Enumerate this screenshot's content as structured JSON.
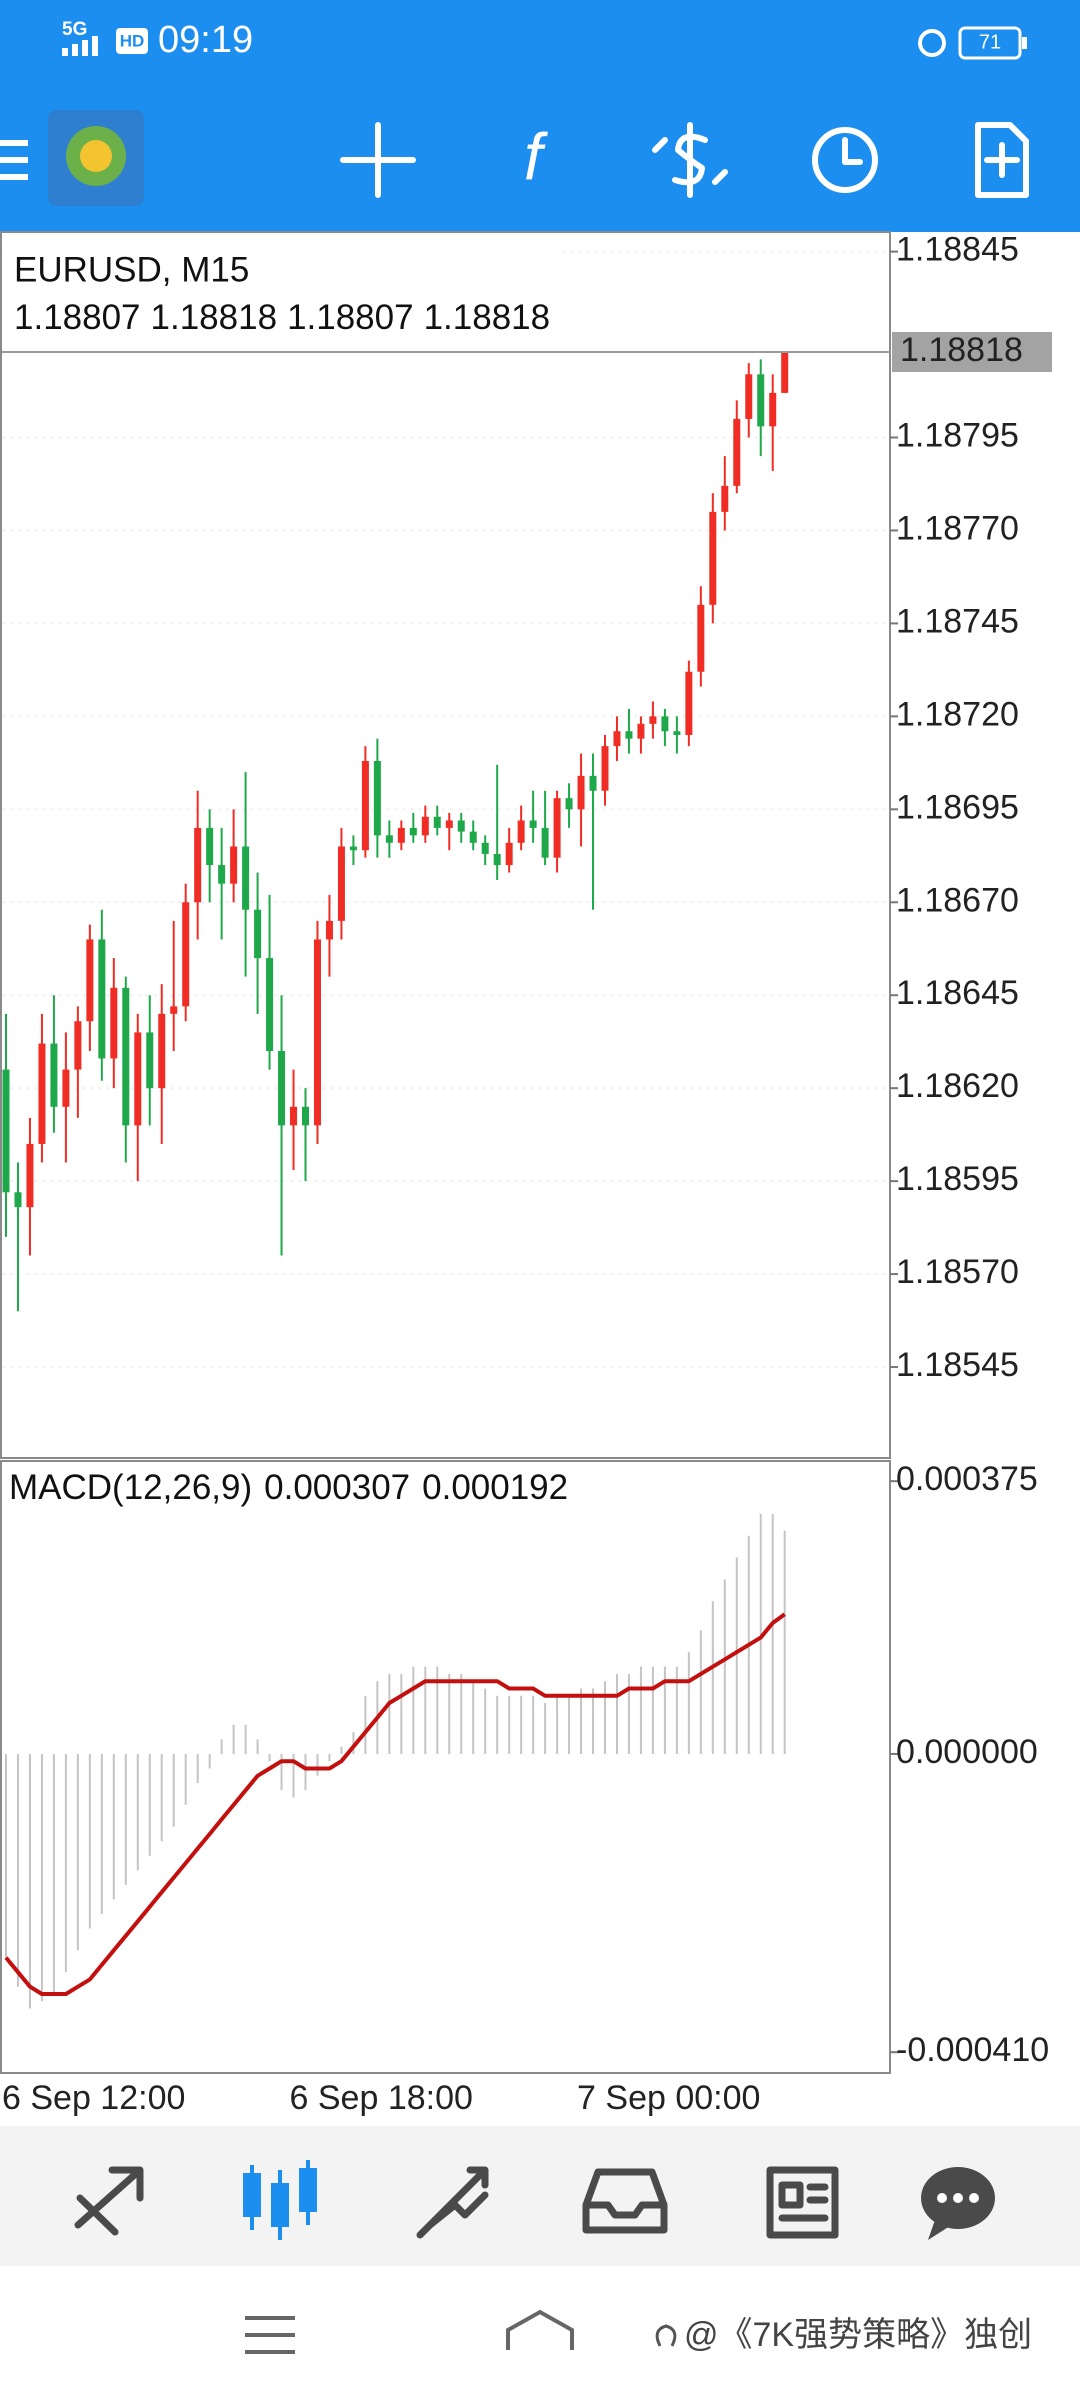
{
  "status_bar": {
    "network": "5G",
    "hd": "HD",
    "time": "09:19",
    "battery": "71"
  },
  "watermark": "@《7K强势策略》独创",
  "chart_data": [
    {
      "type": "candlestick",
      "title": "EURUSD, M15",
      "categories": [
        "6 Sep 12:00",
        null,
        null,
        null,
        null,
        null,
        null,
        null,
        null,
        null,
        null,
        null,
        null,
        null,
        null,
        null,
        null,
        null,
        null,
        null,
        null,
        null,
        null,
        null,
        "6 Sep 18:00",
        null,
        null,
        null,
        null,
        null,
        null,
        null,
        null,
        null,
        null,
        null,
        null,
        null,
        null,
        null,
        null,
        null,
        null,
        null,
        null,
        null,
        null,
        null,
        "7 Sep 00:00",
        null,
        null,
        null,
        null,
        null,
        null,
        null,
        null,
        null,
        null,
        null,
        null,
        null,
        null,
        null,
        null,
        null
      ],
      "open": [
        1.18625,
        1.18592,
        1.18588,
        1.18605,
        1.18632,
        1.18615,
        1.18625,
        1.18638,
        1.1866,
        1.18628,
        1.18647,
        1.1861,
        1.18635,
        1.1862,
        1.1864,
        1.18642,
        1.1867,
        1.1869,
        1.1868,
        1.18675,
        1.18685,
        1.18668,
        1.18655,
        1.1863,
        1.1861,
        1.18615,
        1.1861,
        1.1866,
        1.18665,
        1.18685,
        1.18684,
        1.18708,
        1.18688,
        1.18686,
        1.1869,
        1.18688,
        1.18693,
        1.1869,
        1.18692,
        1.18689,
        1.18686,
        1.18683,
        1.1868,
        1.18686,
        1.18692,
        1.1869,
        1.18682,
        1.18698,
        1.18695,
        1.18704,
        1.187,
        1.18712,
        1.18716,
        1.18714,
        1.18718,
        1.1872,
        1.18716,
        1.18715,
        1.18732,
        1.1875,
        1.18775,
        1.18782,
        1.188,
        1.18812,
        1.18798,
        1.18807
      ],
      "high": [
        1.1864,
        1.186,
        1.18612,
        1.1864,
        1.18645,
        1.18635,
        1.18642,
        1.18664,
        1.18668,
        1.18655,
        1.1865,
        1.1864,
        1.18645,
        1.18648,
        1.18665,
        1.18675,
        1.187,
        1.18695,
        1.1869,
        1.18695,
        1.18705,
        1.18678,
        1.18672,
        1.18645,
        1.18625,
        1.1862,
        1.18665,
        1.18672,
        1.1869,
        1.18688,
        1.18712,
        1.18714,
        1.18692,
        1.18692,
        1.18694,
        1.18696,
        1.18696,
        1.18694,
        1.18694,
        1.18692,
        1.18688,
        1.18707,
        1.1869,
        1.18696,
        1.187,
        1.187,
        1.187,
        1.18702,
        1.1871,
        1.1871,
        1.18715,
        1.1872,
        1.18722,
        1.1872,
        1.18724,
        1.18722,
        1.1872,
        1.18735,
        1.18755,
        1.1878,
        1.1879,
        1.18805,
        1.18815,
        1.18816,
        1.18812,
        1.18818
      ],
      "low": [
        1.1858,
        1.1856,
        1.18575,
        1.186,
        1.18608,
        1.186,
        1.18612,
        1.1863,
        1.18622,
        1.1862,
        1.186,
        1.18595,
        1.1861,
        1.18605,
        1.1863,
        1.18638,
        1.1866,
        1.1867,
        1.1866,
        1.1867,
        1.1865,
        1.1864,
        1.18625,
        1.18575,
        1.18598,
        1.18595,
        1.18605,
        1.1865,
        1.1866,
        1.1868,
        1.18682,
        1.18682,
        1.18682,
        1.18684,
        1.18686,
        1.18686,
        1.18688,
        1.18684,
        1.18686,
        1.18684,
        1.1868,
        1.18676,
        1.18678,
        1.18684,
        1.18686,
        1.1868,
        1.18678,
        1.1869,
        1.18685,
        1.18668,
        1.18696,
        1.18708,
        1.1871,
        1.1871,
        1.18714,
        1.18712,
        1.1871,
        1.18712,
        1.18728,
        1.18745,
        1.1877,
        1.1878,
        1.18795,
        1.1879,
        1.18786,
        1.18807
      ],
      "close": [
        1.18592,
        1.18588,
        1.18605,
        1.18632,
        1.18615,
        1.18625,
        1.18638,
        1.1866,
        1.18628,
        1.18647,
        1.1861,
        1.18635,
        1.1862,
        1.1864,
        1.18642,
        1.1867,
        1.1869,
        1.1868,
        1.18675,
        1.18685,
        1.18668,
        1.18655,
        1.1863,
        1.1861,
        1.18615,
        1.1861,
        1.1866,
        1.18665,
        1.18685,
        1.18684,
        1.18708,
        1.18688,
        1.18686,
        1.1869,
        1.18688,
        1.18693,
        1.1869,
        1.18692,
        1.18689,
        1.18686,
        1.18683,
        1.1868,
        1.18686,
        1.18692,
        1.1869,
        1.18682,
        1.18698,
        1.18695,
        1.18704,
        1.187,
        1.18712,
        1.18716,
        1.18714,
        1.18718,
        1.1872,
        1.18716,
        1.18715,
        1.18732,
        1.1875,
        1.18775,
        1.18782,
        1.188,
        1.18812,
        1.18798,
        1.18807,
        1.18818
      ],
      "up_color": "#ef2d24",
      "down_color": "#1fa84a",
      "current_price": 1.18818,
      "ylim": [
        1.1852,
        1.1885
      ],
      "yticks": [
        1.18845,
        1.18795,
        {
          "value": 1.1877,
          "label": "1.18770"
        },
        1.18745,
        {
          "value": 1.1872,
          "label": "1.18720"
        },
        1.18695,
        {
          "value": 1.1867,
          "label": "1.18670"
        },
        1.18645,
        {
          "value": 1.1862,
          "label": "1.18620"
        },
        1.18595,
        {
          "value": 1.1857,
          "label": "1.18570"
        },
        1.18545
      ],
      "grid": true
    },
    {
      "type": "macd",
      "title": "MACD(12,26,9)",
      "histogram": {
        "color": "#c4c4c4",
        "values": [
          -0.00028,
          -0.00032,
          -0.00035,
          -0.00034,
          -0.00033,
          -0.0003,
          -0.00027,
          -0.00024,
          -0.00022,
          -0.0002,
          -0.00018,
          -0.00016,
          -0.00014,
          -0.00012,
          -0.0001,
          -7e-05,
          -4e-05,
          -2e-05,
          2e-05,
          4e-05,
          4e-05,
          2e-05,
          -1e-05,
          -5e-05,
          -6e-05,
          -5e-05,
          -3e-05,
          -1e-05,
          1e-05,
          3e-05,
          8e-05,
          0.0001,
          0.00011,
          0.00011,
          0.00012,
          0.00012,
          0.00012,
          0.00011,
          0.00011,
          0.0001,
          9e-05,
          8e-05,
          8e-05,
          8e-05,
          8e-05,
          7e-05,
          8e-05,
          8e-05,
          9e-05,
          9e-05,
          0.0001,
          0.00011,
          0.00011,
          0.00012,
          0.00012,
          0.00012,
          0.00012,
          0.00014,
          0.00017,
          0.00021,
          0.00024,
          0.00027,
          0.0003,
          0.00033,
          0.00033,
          0.000307
        ]
      },
      "signal": {
        "color": "#c40f0f",
        "values": [
          -0.00028,
          -0.0003,
          -0.00032,
          -0.00033,
          -0.00033,
          -0.00033,
          -0.00032,
          -0.00031,
          -0.00029,
          -0.00027,
          -0.00025,
          -0.00023,
          -0.00021,
          -0.00019,
          -0.00017,
          -0.00015,
          -0.00013,
          -0.00011,
          -9e-05,
          -7e-05,
          -5e-05,
          -3e-05,
          -2e-05,
          -1e-05,
          -1e-05,
          -2e-05,
          -2e-05,
          -2e-05,
          -1e-05,
          1e-05,
          3e-05,
          5e-05,
          7e-05,
          8e-05,
          9e-05,
          0.0001,
          0.0001,
          0.0001,
          0.0001,
          0.0001,
          0.0001,
          0.0001,
          9e-05,
          9e-05,
          9e-05,
          8e-05,
          8e-05,
          8e-05,
          8e-05,
          8e-05,
          8e-05,
          8e-05,
          9e-05,
          9e-05,
          9e-05,
          0.0001,
          0.0001,
          0.0001,
          0.00011,
          0.00012,
          0.00013,
          0.00014,
          0.00015,
          0.00016,
          0.00018,
          0.000192
        ]
      },
      "ylim": [
        -0.00044,
        0.0004
      ],
      "yticks": [
        0.000375,
        {
          "value": 0,
          "label": "0.000000"
        },
        {
          "value": -0.00041,
          "label": "-0.000410"
        }
      ]
    }
  ]
}
